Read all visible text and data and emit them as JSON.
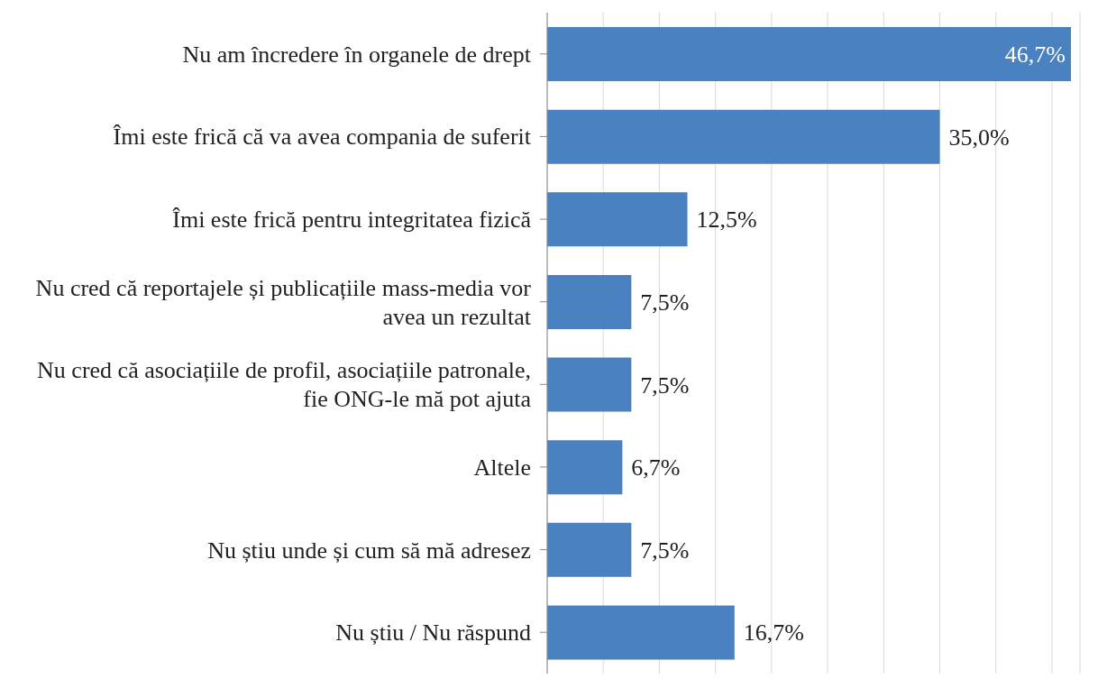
{
  "chart_data": {
    "type": "bar",
    "orientation": "horizontal",
    "categories": [
      "Nu am încredere în organele de drept",
      "Îmi este frică că va avea compania de suferit",
      "Îmi este frică pentru integritatea fizică",
      "Nu cred că reportajele și publicațiile mass-media vor avea un rezultat",
      "Nu cred că asociațiile de profil, asociațiile patronale, fie ONG-le mă pot ajuta",
      "Altele",
      "Nu știu unde și cum să mă adresez",
      "Nu știu / Nu răspund"
    ],
    "values": [
      46.7,
      35.0,
      12.5,
      7.5,
      7.5,
      6.7,
      7.5,
      16.7
    ],
    "value_labels": [
      "46,7%",
      "35,0%",
      "12,5%",
      "7,5%",
      "7,5%",
      "6,7%",
      "7,5%",
      "16,7%"
    ],
    "color": "#4a81c0",
    "xlim": [
      0,
      47.5
    ],
    "xticks": [
      {
        "value": 0,
        "label": null
      },
      {
        "value": 5,
        "label": null
      },
      {
        "value": 10,
        "label": null
      },
      {
        "value": 15,
        "label": null
      },
      {
        "value": 20,
        "label": null
      },
      {
        "value": 25,
        "label": null
      },
      {
        "value": 30,
        "label": null
      },
      {
        "value": 35,
        "label": null
      },
      {
        "value": 40,
        "label": null
      },
      {
        "value": 45,
        "label": null
      }
    ],
    "grid": "x",
    "tick_labels": "y",
    "legend": false
  }
}
